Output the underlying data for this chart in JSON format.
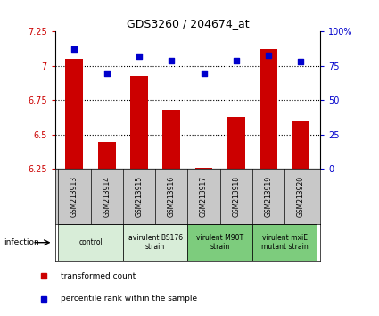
{
  "title": "GDS3260 / 204674_at",
  "samples": [
    "GSM213913",
    "GSM213914",
    "GSM213915",
    "GSM213916",
    "GSM213917",
    "GSM213918",
    "GSM213919",
    "GSM213920"
  ],
  "red_values": [
    7.05,
    6.45,
    6.93,
    6.68,
    6.26,
    6.63,
    7.12,
    6.6
  ],
  "blue_values": [
    87,
    70,
    82,
    79,
    70,
    79,
    83,
    78
  ],
  "ylim_left": [
    6.25,
    7.25
  ],
  "ylim_right": [
    0,
    100
  ],
  "yticks_left": [
    6.25,
    6.5,
    6.75,
    7.0,
    7.25
  ],
  "yticks_right": [
    0,
    25,
    50,
    75,
    100
  ],
  "ytick_labels_left": [
    "6.25",
    "6.5",
    "6.75",
    "7",
    "7.25"
  ],
  "ytick_labels_right": [
    "0",
    "25",
    "50",
    "75",
    "100%"
  ],
  "hlines": [
    7.0,
    6.75,
    6.5
  ],
  "bar_color": "#cc0000",
  "dot_color": "#0000cc",
  "bar_width": 0.55,
  "groups": [
    {
      "label": "control",
      "start": 0,
      "end": 2,
      "color": "#d8edd8"
    },
    {
      "label": "avirulent BS176\nstrain",
      "start": 2,
      "end": 4,
      "color": "#d8edd8"
    },
    {
      "label": "virulent M90T\nstrain",
      "start": 4,
      "end": 6,
      "color": "#7dcc7d"
    },
    {
      "label": "virulent mxiE\nmutant strain",
      "start": 6,
      "end": 8,
      "color": "#7dcc7d"
    }
  ],
  "infection_label": "infection",
  "legend_red": "transformed count",
  "legend_blue": "percentile rank within the sample",
  "background_color": "#ffffff",
  "tick_area_bg": "#c8c8c8"
}
